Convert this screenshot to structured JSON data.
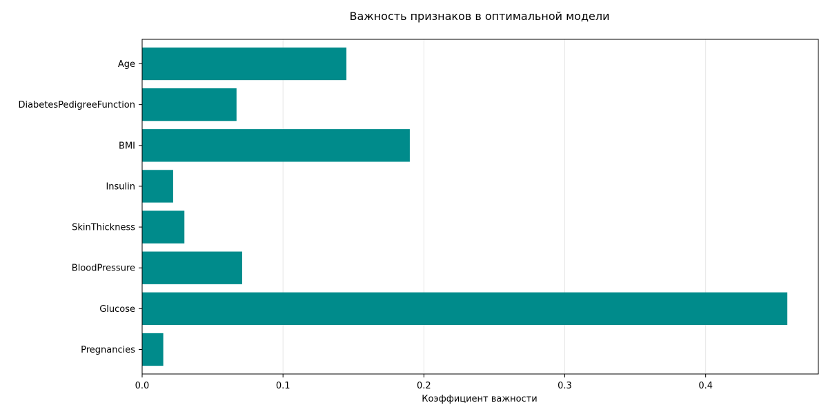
{
  "chart_data": {
    "type": "bar",
    "orientation": "horizontal",
    "title": "Важность признаков в оптимальной модели",
    "xlabel": "Коэффициент важности",
    "ylabel": "",
    "categories": [
      "Pregnancies",
      "Glucose",
      "BloodPressure",
      "SkinThickness",
      "Insulin",
      "BMI",
      "DiabetesPedigreeFunction",
      "Age"
    ],
    "values": [
      0.015,
      0.458,
      0.071,
      0.03,
      0.022,
      0.19,
      0.067,
      0.145
    ],
    "xlim": [
      0,
      0.48
    ],
    "xticks": [
      "0.0",
      "0.1",
      "0.2",
      "0.3",
      "0.4"
    ],
    "xtick_values": [
      0,
      0.1,
      0.2,
      0.3,
      0.4
    ],
    "grid": "vertical",
    "bar_color": "#008b8b",
    "grid_color": "#e6e6e6",
    "axis_color": "#000000"
  }
}
